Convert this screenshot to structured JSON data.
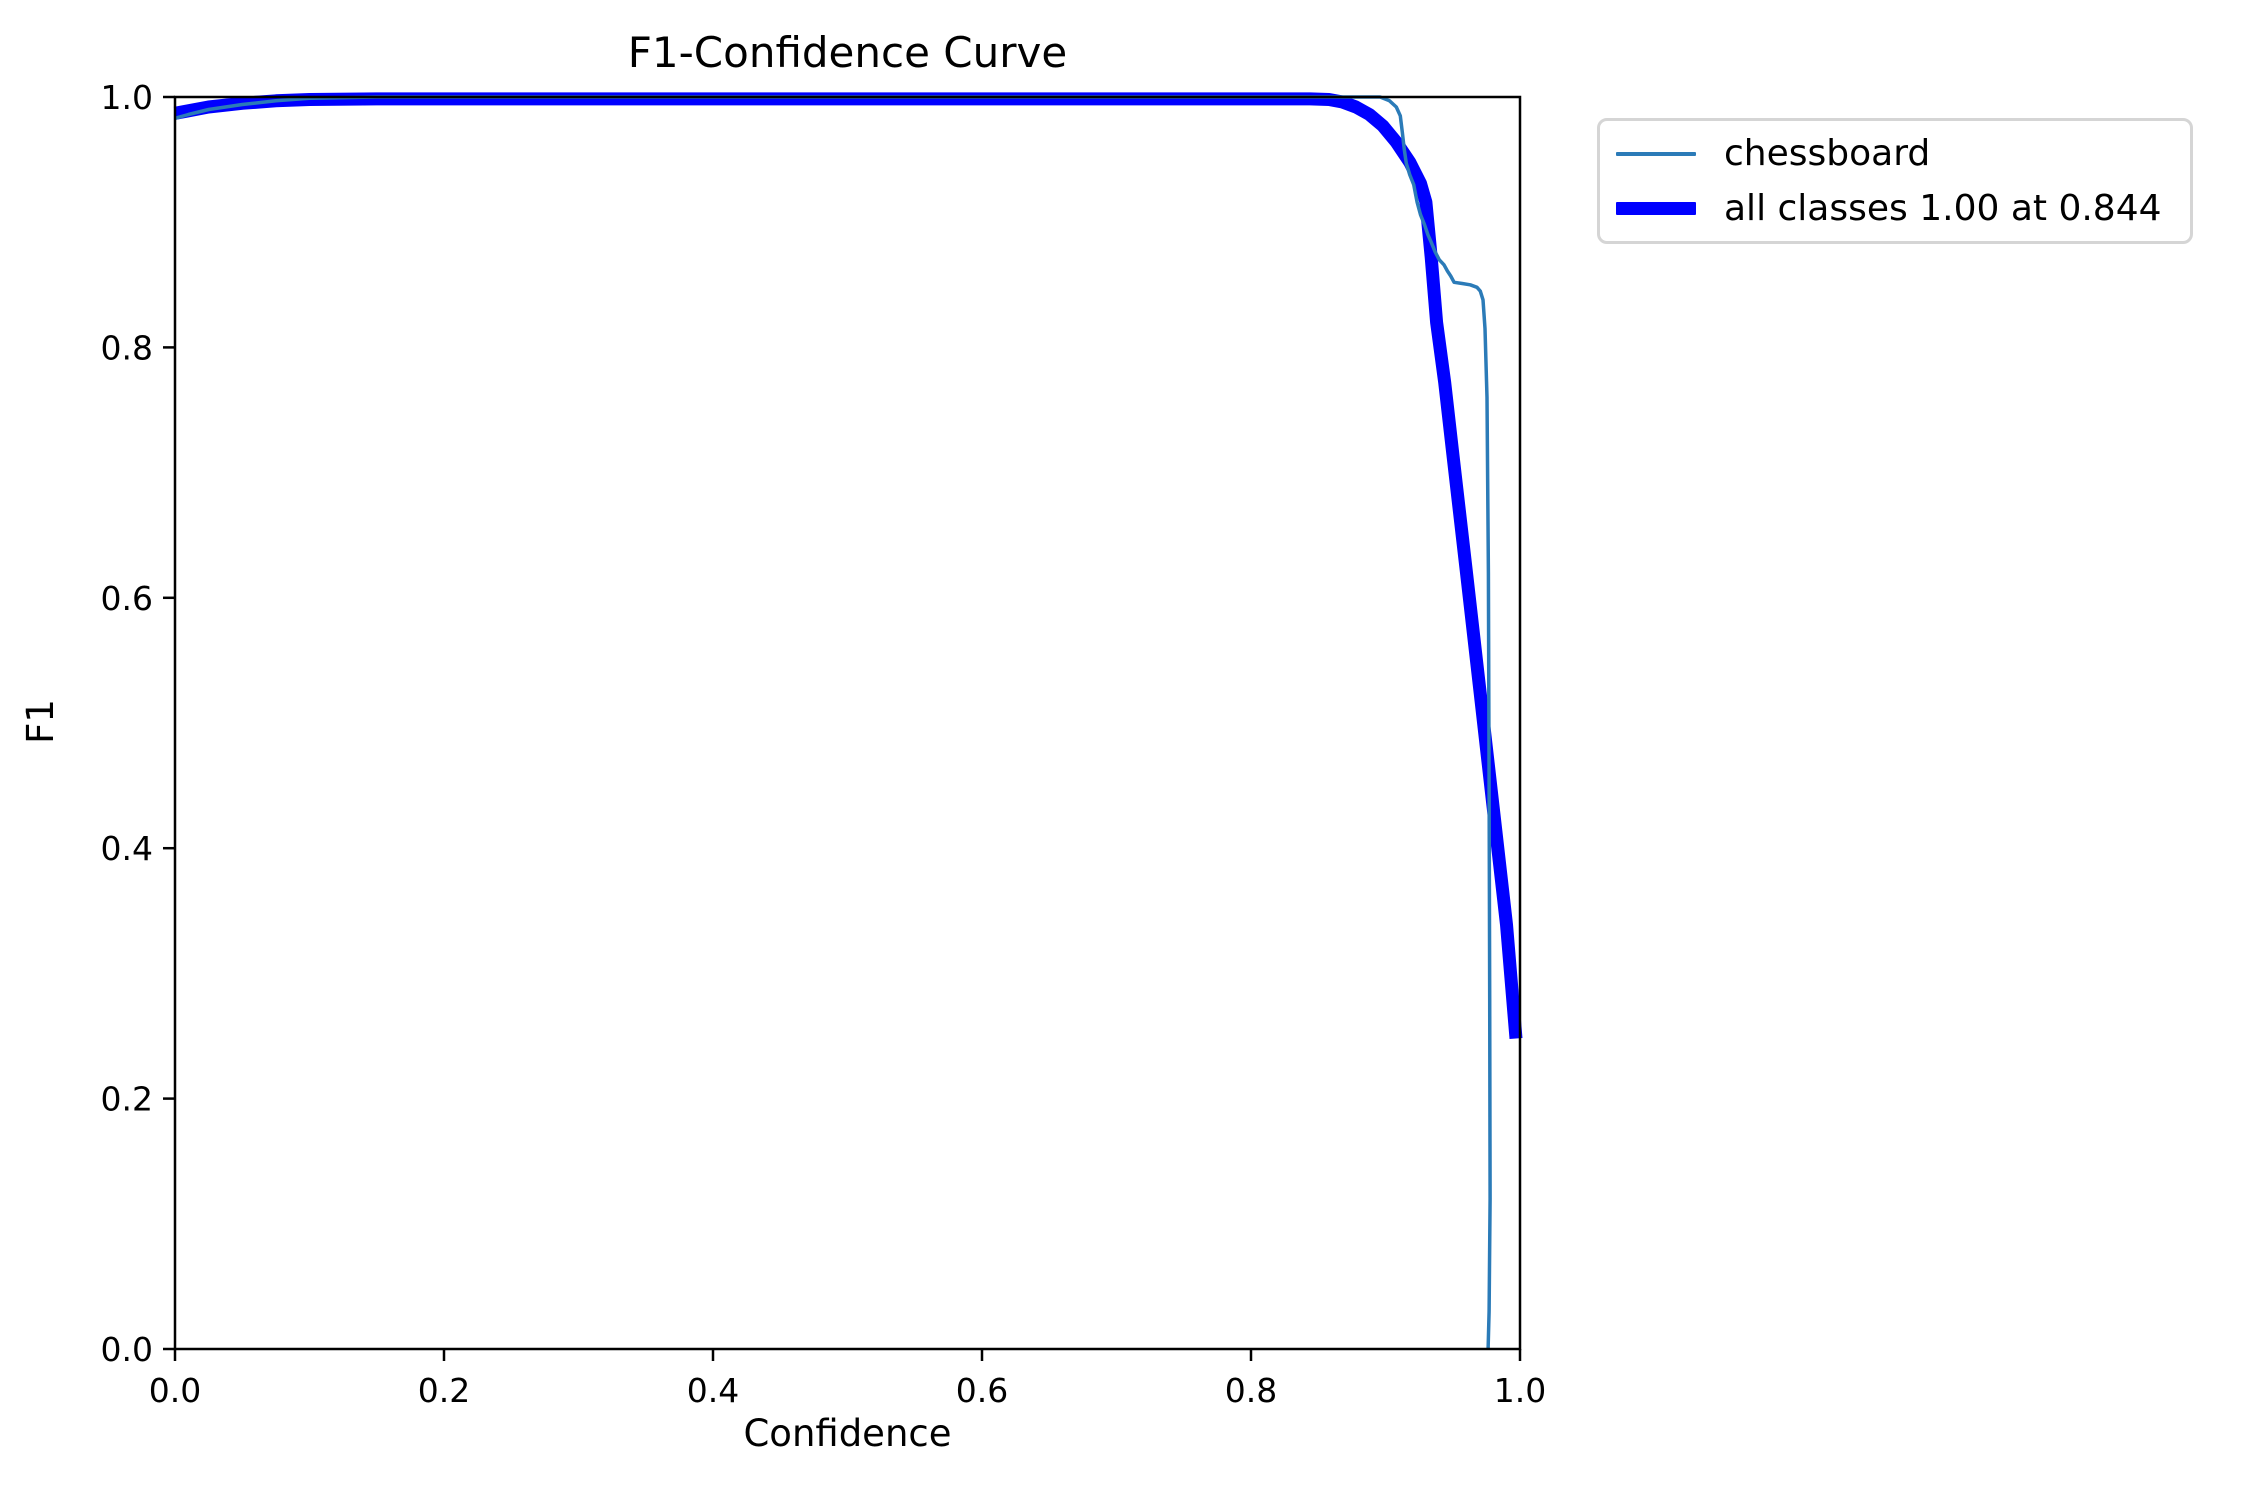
{
  "figure": {
    "background": "#ffffff",
    "text_color": "#000000",
    "spine_color": "#000000"
  },
  "chart_data": {
    "type": "line",
    "title": "F1-Confidence Curve",
    "xlabel": "Confidence",
    "ylabel": "F1",
    "xlim": [
      0.0,
      1.0
    ],
    "ylim": [
      0.0,
      1.0
    ],
    "grid": false,
    "xticks": {
      "values": [
        0.0,
        0.2,
        0.4,
        0.6,
        0.8,
        1.0
      ],
      "labels": [
        "0.0",
        "0.2",
        "0.4",
        "0.6",
        "0.8",
        "1.0"
      ]
    },
    "yticks": {
      "values": [
        0.0,
        0.2,
        0.4,
        0.6,
        0.8,
        1.0
      ],
      "labels": [
        "0.0",
        "0.2",
        "0.4",
        "0.6",
        "0.8",
        "1.0"
      ]
    },
    "best_f1": "1.00",
    "best_confidence": "0.844",
    "series": [
      {
        "name": "all classes",
        "legend_label": "all classes 1.00 at 0.844",
        "color": "#0000ff",
        "line_width": 13,
        "points": [
          [
            0.0,
            0.987
          ],
          [
            0.01,
            0.989
          ],
          [
            0.025,
            0.992
          ],
          [
            0.05,
            0.995
          ],
          [
            0.075,
            0.997
          ],
          [
            0.1,
            0.998
          ],
          [
            0.15,
            0.9985
          ],
          [
            0.2,
            0.9985
          ],
          [
            0.3,
            0.9985
          ],
          [
            0.4,
            0.9985
          ],
          [
            0.5,
            0.9985
          ],
          [
            0.6,
            0.9985
          ],
          [
            0.7,
            0.9985
          ],
          [
            0.8,
            0.9985
          ],
          [
            0.844,
            0.9985
          ],
          [
            0.858,
            0.998
          ],
          [
            0.868,
            0.996
          ],
          [
            0.878,
            0.992
          ],
          [
            0.888,
            0.986
          ],
          [
            0.898,
            0.977
          ],
          [
            0.908,
            0.964
          ],
          [
            0.918,
            0.948
          ],
          [
            0.926,
            0.931
          ],
          [
            0.93,
            0.916
          ],
          [
            0.934,
            0.872
          ],
          [
            0.938,
            0.82
          ],
          [
            0.944,
            0.772
          ],
          [
            0.95,
            0.715
          ],
          [
            0.96,
            0.622
          ],
          [
            0.97,
            0.528
          ],
          [
            0.98,
            0.433
          ],
          [
            0.99,
            0.339
          ],
          [
            0.997,
            0.248
          ]
        ]
      },
      {
        "name": "chessboard",
        "legend_label": "chessboard",
        "color": "#2b7bb8",
        "line_width": 3.5,
        "points": [
          [
            0.0,
            0.983
          ],
          [
            0.01,
            0.986
          ],
          [
            0.025,
            0.99
          ],
          [
            0.05,
            0.994
          ],
          [
            0.075,
            0.997
          ],
          [
            0.1,
            0.999
          ],
          [
            0.15,
            1.0
          ],
          [
            0.25,
            1.0
          ],
          [
            0.4,
            1.0
          ],
          [
            0.55,
            1.0
          ],
          [
            0.7,
            1.0
          ],
          [
            0.8,
            1.0
          ],
          [
            0.86,
            1.0
          ],
          [
            0.896,
            1.0
          ],
          [
            0.903,
            0.997
          ],
          [
            0.908,
            0.992
          ],
          [
            0.911,
            0.985
          ],
          [
            0.9125,
            0.972
          ],
          [
            0.914,
            0.958
          ],
          [
            0.9155,
            0.947
          ],
          [
            0.918,
            0.938
          ],
          [
            0.921,
            0.93
          ],
          [
            0.9235,
            0.916
          ],
          [
            0.926,
            0.906
          ],
          [
            0.929,
            0.898
          ],
          [
            0.9315,
            0.89
          ],
          [
            0.934,
            0.884
          ],
          [
            0.937,
            0.876
          ],
          [
            0.94,
            0.87
          ],
          [
            0.9435,
            0.866
          ],
          [
            0.946,
            0.861
          ],
          [
            0.9485,
            0.857
          ],
          [
            0.951,
            0.852
          ],
          [
            0.957,
            0.851
          ],
          [
            0.963,
            0.85
          ],
          [
            0.968,
            0.848
          ],
          [
            0.9705,
            0.845
          ],
          [
            0.9725,
            0.838
          ],
          [
            0.974,
            0.815
          ],
          [
            0.9755,
            0.76
          ],
          [
            0.9765,
            0.62
          ],
          [
            0.977,
            0.45
          ],
          [
            0.9775,
            0.28
          ],
          [
            0.9778,
            0.12
          ],
          [
            0.977,
            0.03
          ],
          [
            0.9763,
            0.0
          ]
        ]
      }
    ],
    "legend": {
      "entries": [
        {
          "label": "chessboard",
          "color": "#2b7bb8",
          "line_width": 4
        },
        {
          "label": "all classes 1.00 at 0.844",
          "color": "#0000ff",
          "line_width": 13
        }
      ]
    }
  }
}
